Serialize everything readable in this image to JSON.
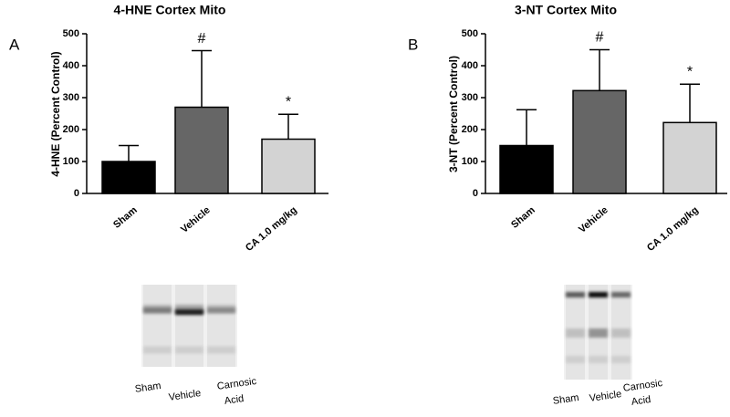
{
  "chart_data": [
    {
      "type": "bar",
      "panel_label": "A",
      "title": "4-HNE Cortex Mito",
      "ylabel": "4-HNE (Percent Control)",
      "categories": [
        "Sham",
        "Vehicle",
        "CA 1.0 mg/kg"
      ],
      "values": [
        100,
        270,
        170
      ],
      "errors": [
        50,
        177,
        78
      ],
      "colors": [
        "#000000",
        "#666666",
        "#d3d3d3"
      ],
      "annotations": [
        {
          "category": "Vehicle",
          "text": "#"
        },
        {
          "category": "CA 1.0 mg/kg",
          "text": "*"
        }
      ],
      "ylim": [
        0,
        500
      ],
      "yticks": [
        0,
        100,
        200,
        300,
        400,
        500
      ],
      "blot_labels": [
        "Sham",
        "Vehicle",
        "Carnosic",
        "Acid"
      ]
    },
    {
      "type": "bar",
      "panel_label": "B",
      "title": "3-NT Cortex Mito",
      "ylabel": "3-NT (Percent Control)",
      "categories": [
        "Sham",
        "Vehicle",
        "CA 1.0 mg/kg"
      ],
      "values": [
        150,
        322,
        222
      ],
      "errors": [
        112,
        128,
        120
      ],
      "colors": [
        "#000000",
        "#666666",
        "#d3d3d3"
      ],
      "annotations": [
        {
          "category": "Vehicle",
          "text": "#"
        },
        {
          "category": "CA 1.0 mg/kg",
          "text": "*"
        }
      ],
      "ylim": [
        0,
        500
      ],
      "yticks": [
        0,
        100,
        200,
        300,
        400,
        500
      ],
      "blot_labels": [
        "Sham",
        "Vehicle",
        "Carnosic",
        "Acid"
      ]
    }
  ]
}
